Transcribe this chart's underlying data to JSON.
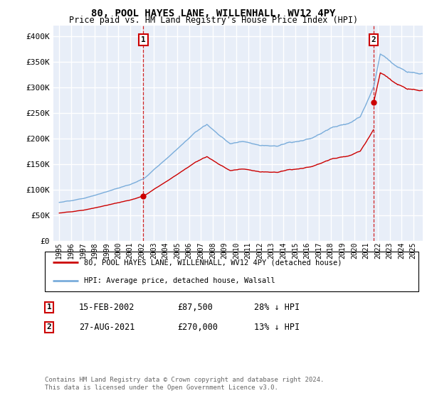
{
  "title": "80, POOL HAYES LANE, WILLENHALL, WV12 4PY",
  "subtitle": "Price paid vs. HM Land Registry's House Price Index (HPI)",
  "ylim": [
    0,
    420000
  ],
  "yticks": [
    0,
    50000,
    100000,
    150000,
    200000,
    250000,
    300000,
    350000,
    400000
  ],
  "ytick_labels": [
    "£0",
    "£50K",
    "£100K",
    "£150K",
    "£200K",
    "£250K",
    "£300K",
    "£350K",
    "£400K"
  ],
  "hpi_color": "#7aaddb",
  "price_color": "#cc0000",
  "background_color": "#e8eef8",
  "grid_color": "#ffffff",
  "annotation1_date": "15-FEB-2002",
  "annotation1_price": "£87,500",
  "annotation1_hpi": "28% ↓ HPI",
  "annotation2_date": "27-AUG-2021",
  "annotation2_price": "£270,000",
  "annotation2_hpi": "13% ↓ HPI",
  "legend_label1": "80, POOL HAYES LANE, WILLENHALL, WV12 4PY (detached house)",
  "legend_label2": "HPI: Average price, detached house, Walsall",
  "footer1": "Contains HM Land Registry data © Crown copyright and database right 2024.",
  "footer2": "This data is licensed under the Open Government Licence v3.0.",
  "purchase1_year": 2002,
  "purchase1_month": 2,
  "purchase1_price": 87500,
  "purchase2_year": 2021,
  "purchase2_month": 8,
  "purchase2_price": 270000,
  "xmin": 1994.5,
  "xmax": 2025.8
}
